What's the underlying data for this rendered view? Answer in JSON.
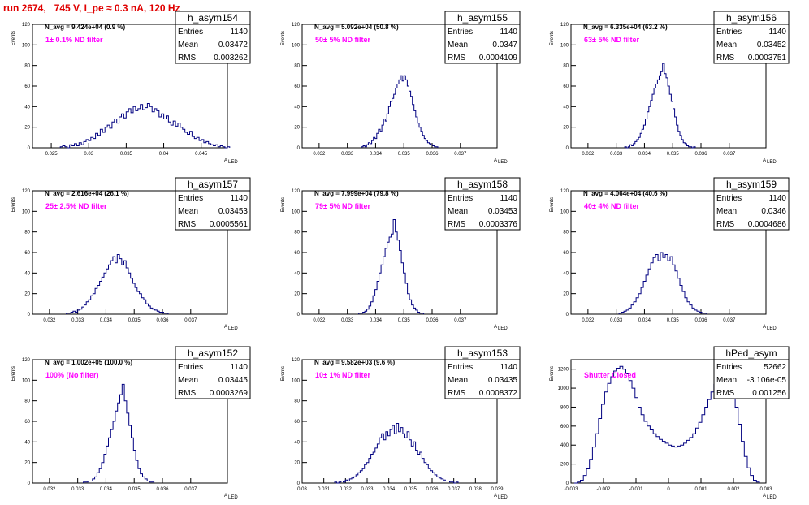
{
  "title": "run 2674,   745 V, I_pe ≈ 0.3 nA, 120 Hz",
  "ylabel": "Events",
  "xlabel": "A",
  "xlabel_sub": "LED",
  "chart_data": [
    {
      "type": "histogram",
      "name": "h_asym154",
      "navg": "N_avg = 9.424e+04 (0.9 %)",
      "filter": "1± 0.1% ND filter",
      "stats": {
        "Entries": "1140",
        "Mean": "0.03472",
        "RMS": "0.003262"
      },
      "xlim": [
        0.0225,
        0.0485
      ],
      "ylim": [
        0,
        120
      ],
      "xticks": [
        "0.025",
        "0.03",
        "0.035",
        "0.04",
        "0.045"
      ],
      "xtick_vals": [
        0.025,
        0.03,
        0.035,
        0.04,
        0.045
      ],
      "yticks": [
        0,
        20,
        40,
        60,
        80,
        100,
        120
      ],
      "bin_edges": [
        0.0262,
        0.0488
      ],
      "counts": [
        1,
        2,
        1,
        0,
        3,
        2,
        4,
        2,
        5,
        3,
        6,
        8,
        7,
        10,
        9,
        14,
        12,
        18,
        15,
        20,
        22,
        19,
        25,
        28,
        24,
        30,
        33,
        29,
        35,
        38,
        34,
        40,
        36,
        38,
        42,
        37,
        39,
        43,
        40,
        35,
        38,
        36,
        30,
        33,
        28,
        31,
        25,
        22,
        26,
        21,
        24,
        20,
        18,
        15,
        13,
        16,
        11,
        9,
        10,
        7,
        8,
        5,
        6,
        4,
        3,
        2,
        3,
        1,
        2,
        1,
        0,
        1
      ]
    },
    {
      "type": "histogram",
      "name": "h_asym155",
      "navg": "N_avg = 5.092e+04 (50.8 %)",
      "filter": "50± 5% ND filter",
      "stats": {
        "Entries": "1140",
        "Mean": "0.0347",
        "RMS": "0.0004109"
      },
      "xlim": [
        0.0314,
        0.0383
      ],
      "ylim": [
        0,
        120
      ],
      "xticks": [
        "0.032",
        "0.033",
        "0.034",
        "0.035",
        "0.036",
        "0.037"
      ],
      "xtick_vals": [
        0.032,
        0.033,
        0.034,
        0.035,
        0.036,
        0.037
      ],
      "yticks": [
        0,
        20,
        40,
        60,
        80,
        100,
        120
      ],
      "bin_edges": [
        0.0335,
        0.0362
      ],
      "counts": [
        1,
        2,
        1,
        3,
        5,
        4,
        7,
        10,
        9,
        14,
        18,
        16,
        22,
        28,
        26,
        33,
        40,
        45,
        48,
        52,
        58,
        62,
        66,
        70,
        65,
        70,
        66,
        60,
        55,
        50,
        42,
        36,
        30,
        24,
        20,
        16,
        12,
        9,
        7,
        5,
        4,
        3,
        2,
        1,
        1
      ]
    },
    {
      "type": "histogram",
      "name": "h_asym156",
      "navg": "N_avg = 6.335e+04 (63.2 %)",
      "filter": "63± 5% ND filter",
      "stats": {
        "Entries": "1140",
        "Mean": "0.03452",
        "RMS": "0.0003751"
      },
      "xlim": [
        0.0314,
        0.0383
      ],
      "ylim": [
        0,
        120
      ],
      "xticks": [
        "0.032",
        "0.033",
        "0.034",
        "0.035",
        "0.036",
        "0.037"
      ],
      "xtick_vals": [
        0.032,
        0.033,
        0.034,
        0.035,
        0.036,
        0.037
      ],
      "yticks": [
        0,
        20,
        40,
        60,
        80,
        100,
        120
      ],
      "bin_edges": [
        0.0333,
        0.0358
      ],
      "counts": [
        1,
        0,
        1,
        3,
        2,
        4,
        6,
        8,
        10,
        14,
        18,
        22,
        28,
        35,
        40,
        46,
        52,
        58,
        62,
        66,
        70,
        74,
        82,
        72,
        68,
        60,
        52,
        45,
        38,
        30,
        22,
        16,
        12,
        8,
        5,
        4,
        2,
        1,
        1,
        0,
        1
      ]
    },
    {
      "type": "histogram",
      "name": "h_asym157",
      "navg": "N_avg = 2.616e+04 (26.1 %)",
      "filter": "25± 2.5% ND filter",
      "stats": {
        "Entries": "1140",
        "Mean": "0.03453",
        "RMS": "0.0005561"
      },
      "xlim": [
        0.0314,
        0.0383
      ],
      "ylim": [
        0,
        120
      ],
      "xticks": [
        "0.032",
        "0.033",
        "0.034",
        "0.035",
        "0.036",
        "0.037"
      ],
      "xtick_vals": [
        0.032,
        0.033,
        0.034,
        0.035,
        0.036,
        0.037
      ],
      "yticks": [
        0,
        20,
        40,
        60,
        80,
        100,
        120
      ],
      "bin_edges": [
        0.0326,
        0.0362
      ],
      "counts": [
        1,
        1,
        2,
        3,
        2,
        4,
        5,
        7,
        9,
        12,
        14,
        18,
        20,
        25,
        28,
        32,
        36,
        40,
        44,
        48,
        52,
        56,
        50,
        58,
        54,
        48,
        52,
        45,
        40,
        35,
        30,
        26,
        22,
        20,
        16,
        14,
        10,
        8,
        6,
        5,
        4,
        3,
        2,
        2,
        1,
        1
      ]
    },
    {
      "type": "histogram",
      "name": "h_asym158",
      "navg": "N_avg = 7.999e+04 (79.8 %)",
      "filter": "79± 5% ND filter",
      "stats": {
        "Entries": "1140",
        "Mean": "0.03453",
        "RMS": "0.0003376"
      },
      "xlim": [
        0.0314,
        0.0383
      ],
      "ylim": [
        0,
        120
      ],
      "xticks": [
        "0.032",
        "0.033",
        "0.034",
        "0.035",
        "0.036",
        "0.037"
      ],
      "xtick_vals": [
        0.032,
        0.033,
        0.034,
        0.035,
        0.036,
        0.037
      ],
      "yticks": [
        0,
        20,
        40,
        60,
        80,
        100,
        120
      ],
      "bin_edges": [
        0.0334,
        0.0357
      ],
      "counts": [
        1,
        1,
        2,
        3,
        5,
        8,
        12,
        18,
        24,
        32,
        40,
        48,
        56,
        64,
        70,
        75,
        78,
        92,
        80,
        72,
        62,
        50,
        40,
        30,
        20,
        14,
        9,
        6,
        4,
        2,
        1,
        1
      ]
    },
    {
      "type": "histogram",
      "name": "h_asym159",
      "navg": "N_avg = 4.064e+04 (40.6 %)",
      "filter": "40± 4% ND filter",
      "stats": {
        "Entries": "1140",
        "Mean": "0.0346",
        "RMS": "0.0004686"
      },
      "xlim": [
        0.0314,
        0.0383
      ],
      "ylim": [
        0,
        120
      ],
      "xticks": [
        "0.032",
        "0.033",
        "0.034",
        "0.035",
        "0.036",
        "0.037"
      ],
      "xtick_vals": [
        0.032,
        0.033,
        0.034,
        0.035,
        0.036,
        0.037
      ],
      "yticks": [
        0,
        20,
        40,
        60,
        80,
        100,
        120
      ],
      "bin_edges": [
        0.0331,
        0.0362
      ],
      "counts": [
        1,
        2,
        3,
        4,
        6,
        9,
        12,
        16,
        20,
        26,
        32,
        38,
        44,
        50,
        55,
        58,
        52,
        60,
        55,
        58,
        52,
        56,
        48,
        42,
        35,
        28,
        22,
        16,
        12,
        9,
        6,
        4,
        3,
        2,
        1,
        1
      ]
    },
    {
      "type": "histogram",
      "name": "h_asym152",
      "navg": "N_avg = 1.002e+05 (100.0 %)",
      "filter": "100% (No filter)",
      "stats": {
        "Entries": "1140",
        "Mean": "0.03445",
        "RMS": "0.0003269"
      },
      "xlim": [
        0.0314,
        0.0383
      ],
      "ylim": [
        0,
        120
      ],
      "xticks": [
        "0.032",
        "0.033",
        "0.034",
        "0.035",
        "0.036",
        "0.037"
      ],
      "xtick_vals": [
        0.032,
        0.033,
        0.034,
        0.035,
        0.036,
        0.037
      ],
      "yticks": [
        0,
        20,
        40,
        60,
        80,
        100,
        120
      ],
      "bin_edges": [
        0.0332,
        0.0357
      ],
      "counts": [
        1,
        1,
        2,
        2,
        4,
        6,
        10,
        14,
        20,
        28,
        36,
        44,
        52,
        60,
        70,
        78,
        86,
        96,
        80,
        68,
        56,
        44,
        32,
        22,
        14,
        9,
        6,
        4,
        2,
        1,
        1
      ]
    },
    {
      "type": "histogram",
      "name": "h_asym153",
      "navg": "N_avg = 9.582e+03 (9.6 %)",
      "filter": "10± 1% ND filter",
      "stats": {
        "Entries": "1140",
        "Mean": "0.03435",
        "RMS": "0.0008372"
      },
      "xlim": [
        0.03,
        0.039
      ],
      "ylim": [
        0,
        120
      ],
      "xticks": [
        "0.03",
        "0.031",
        "0.032",
        "0.033",
        "0.034",
        "0.035",
        "0.036",
        "0.037",
        "0.038",
        "0.039"
      ],
      "xtick_vals": [
        0.03,
        0.031,
        0.032,
        0.033,
        0.034,
        0.035,
        0.036,
        0.037,
        0.038,
        0.039
      ],
      "yticks": [
        0,
        20,
        40,
        60,
        80,
        100,
        120
      ],
      "bin_edges": [
        0.0315,
        0.0372
      ],
      "counts": [
        1,
        0,
        1,
        2,
        1,
        3,
        2,
        4,
        5,
        6,
        8,
        10,
        12,
        14,
        18,
        20,
        24,
        28,
        30,
        34,
        38,
        44,
        48,
        42,
        50,
        46,
        52,
        56,
        48,
        58,
        50,
        54,
        48,
        44,
        50,
        42,
        36,
        40,
        32,
        28,
        30,
        24,
        20,
        18,
        14,
        12,
        10,
        8,
        6,
        5,
        4,
        3,
        2,
        2,
        1,
        1,
        0,
        1
      ]
    },
    {
      "type": "histogram",
      "name": "hPed_asym",
      "navg": "",
      "filter": "Shutter Closed",
      "stats": {
        "Entries": "52662",
        "Mean": "-3.106e-05",
        "RMS": "0.001256"
      },
      "xlim": [
        -0.003,
        0.003
      ],
      "ylim": [
        0,
        1300
      ],
      "xticks": [
        "-0.003",
        "-0.002",
        "-0.001",
        "0",
        "0.001",
        "0.002",
        "0.003"
      ],
      "xtick_vals": [
        -0.003,
        -0.002,
        -0.001,
        0,
        0.001,
        0.002,
        0.003
      ],
      "yticks": [
        0,
        200,
        400,
        600,
        800,
        1000,
        1200
      ],
      "bin_edges": [
        -0.0029,
        0.0028
      ],
      "counts": [
        0,
        10,
        30,
        80,
        150,
        250,
        380,
        520,
        680,
        830,
        960,
        1050,
        1120,
        1180,
        1210,
        1230,
        1200,
        1150,
        1080,
        1000,
        900,
        800,
        720,
        650,
        600,
        560,
        520,
        490,
        460,
        440,
        420,
        400,
        390,
        380,
        390,
        400,
        420,
        450,
        480,
        520,
        580,
        640,
        720,
        800,
        880,
        960,
        1040,
        1100,
        1150,
        1180,
        1150,
        1080,
        950,
        800,
        620,
        440,
        280,
        160,
        80,
        30,
        10
      ]
    }
  ]
}
